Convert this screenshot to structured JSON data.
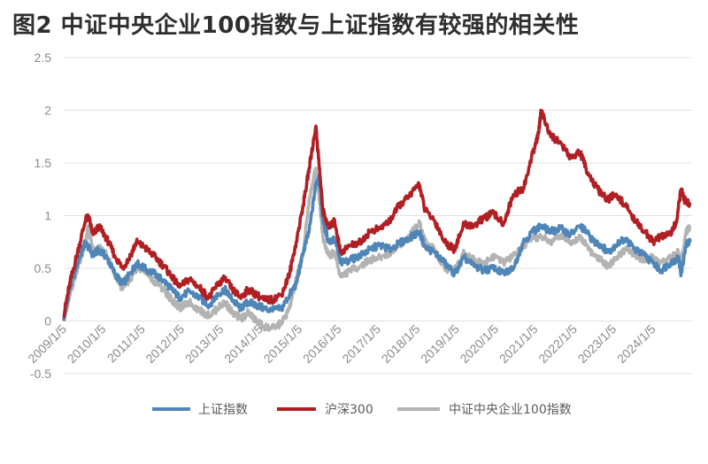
{
  "title": "图2  中证中央企业100指数与上证指数有较强的相关性",
  "colors": {
    "sse": "#4f86b7",
    "csi300": "#b01f24",
    "cse100": "#b3b3b3",
    "grid": "#e1e1e1",
    "axis_text": "#8a8a8a"
  },
  "chart_data": {
    "type": "line",
    "title": "图2  中证中央企业100指数与上证指数有较强的相关性",
    "xlabel": "",
    "ylabel": "",
    "ylim": [
      -0.5,
      2.5
    ],
    "yticks": [
      -0.5,
      0,
      0.5,
      1,
      1.5,
      2,
      2.5
    ],
    "ytick_labels": [
      "-0.5",
      "0",
      "0.5",
      "1",
      "1.5",
      "2",
      "2.5"
    ],
    "xlim": [
      2009.0,
      2025.0
    ],
    "xticks": [
      2009.0,
      2010.0,
      2011.0,
      2012.0,
      2013.0,
      2014.0,
      2015.0,
      2016.0,
      2017.0,
      2018.0,
      2019.0,
      2020.0,
      2021.0,
      2022.0,
      2023.0,
      2024.0
    ],
    "xtick_labels": [
      "2009/1/5",
      "2010/1/5",
      "2011/1/5",
      "2012/1/5",
      "2013/1/5",
      "2014/1/5",
      "2015/1/5",
      "2016/1/5",
      "2017/1/5",
      "2018/1/5",
      "2019/1/5",
      "2020/1/5",
      "2021/1/5",
      "2022/1/5",
      "2023/1/5",
      "2024/1/5"
    ],
    "grid": "horizontal",
    "legend": "bottom",
    "series": [
      {
        "name": "上证指数",
        "x": [
          2009.0,
          2009.15,
          2009.35,
          2009.55,
          2009.75,
          2009.9,
          2010.1,
          2010.3,
          2010.5,
          2010.7,
          2010.85,
          2011.05,
          2011.3,
          2011.55,
          2011.75,
          2011.95,
          2012.2,
          2012.45,
          2012.7,
          2012.92,
          2013.1,
          2013.3,
          2013.5,
          2013.7,
          2013.9,
          2014.1,
          2014.3,
          2014.55,
          2014.75,
          2014.92,
          2015.1,
          2015.25,
          2015.42,
          2015.5,
          2015.6,
          2015.75,
          2015.9,
          2016.05,
          2016.3,
          2016.55,
          2016.8,
          2017.05,
          2017.3,
          2017.55,
          2017.8,
          2018.05,
          2018.2,
          2018.45,
          2018.7,
          2018.95,
          2019.2,
          2019.45,
          2019.7,
          2019.95,
          2020.2,
          2020.45,
          2020.7,
          2020.95,
          2021.15,
          2021.4,
          2021.65,
          2021.9,
          2022.15,
          2022.3,
          2022.5,
          2022.7,
          2022.85,
          2023.05,
          2023.3,
          2023.55,
          2023.8,
          2024.0,
          2024.2,
          2024.45,
          2024.65,
          2024.72,
          2024.85,
          2024.95
        ],
        "y": [
          0.0,
          0.3,
          0.55,
          0.75,
          0.62,
          0.68,
          0.6,
          0.45,
          0.35,
          0.45,
          0.55,
          0.5,
          0.45,
          0.38,
          0.3,
          0.22,
          0.28,
          0.22,
          0.15,
          0.25,
          0.3,
          0.2,
          0.12,
          0.18,
          0.15,
          0.12,
          0.1,
          0.12,
          0.25,
          0.35,
          0.65,
          0.85,
          1.3,
          1.38,
          0.95,
          0.75,
          0.78,
          0.55,
          0.58,
          0.62,
          0.68,
          0.72,
          0.68,
          0.74,
          0.78,
          0.85,
          0.7,
          0.65,
          0.55,
          0.45,
          0.6,
          0.52,
          0.48,
          0.5,
          0.45,
          0.5,
          0.75,
          0.85,
          0.9,
          0.85,
          0.88,
          0.82,
          0.9,
          0.85,
          0.75,
          0.72,
          0.65,
          0.72,
          0.78,
          0.68,
          0.62,
          0.55,
          0.48,
          0.55,
          0.6,
          0.45,
          0.72,
          0.75
        ]
      },
      {
        "name": "沪深300",
        "x": [
          2009.0,
          2009.15,
          2009.35,
          2009.55,
          2009.62,
          2009.75,
          2009.9,
          2010.1,
          2010.3,
          2010.5,
          2010.7,
          2010.85,
          2011.05,
          2011.3,
          2011.55,
          2011.75,
          2011.95,
          2012.2,
          2012.45,
          2012.7,
          2012.92,
          2013.1,
          2013.3,
          2013.5,
          2013.7,
          2013.9,
          2014.1,
          2014.3,
          2014.55,
          2014.75,
          2014.92,
          2015.1,
          2015.25,
          2015.42,
          2015.5,
          2015.6,
          2015.75,
          2015.9,
          2016.05,
          2016.3,
          2016.55,
          2016.8,
          2017.05,
          2017.3,
          2017.55,
          2017.8,
          2018.05,
          2018.2,
          2018.45,
          2018.7,
          2018.95,
          2019.2,
          2019.45,
          2019.7,
          2019.95,
          2020.2,
          2020.45,
          2020.7,
          2020.95,
          2021.1,
          2021.15,
          2021.4,
          2021.65,
          2021.9,
          2022.15,
          2022.3,
          2022.5,
          2022.7,
          2022.85,
          2023.05,
          2023.3,
          2023.55,
          2023.8,
          2024.0,
          2024.2,
          2024.45,
          2024.6,
          2024.72,
          2024.8,
          2024.95
        ],
        "y": [
          0.05,
          0.35,
          0.65,
          0.95,
          1.0,
          0.82,
          0.9,
          0.78,
          0.62,
          0.5,
          0.62,
          0.75,
          0.7,
          0.62,
          0.52,
          0.42,
          0.32,
          0.4,
          0.32,
          0.22,
          0.35,
          0.4,
          0.3,
          0.22,
          0.3,
          0.25,
          0.2,
          0.2,
          0.25,
          0.45,
          0.75,
          1.1,
          1.45,
          1.85,
          1.5,
          1.05,
          0.88,
          0.95,
          0.65,
          0.72,
          0.75,
          0.85,
          0.88,
          0.95,
          1.1,
          1.18,
          1.3,
          1.05,
          0.95,
          0.75,
          0.68,
          0.92,
          0.9,
          0.98,
          1.02,
          0.92,
          1.2,
          1.25,
          1.6,
          1.8,
          2.0,
          1.75,
          1.7,
          1.55,
          1.6,
          1.45,
          1.3,
          1.2,
          1.15,
          1.2,
          1.1,
          0.95,
          0.85,
          0.75,
          0.8,
          0.82,
          0.95,
          1.25,
          1.15,
          1.1
        ]
      },
      {
        "name": "中证中央企业100指数",
        "x": [
          2009.0,
          2009.15,
          2009.35,
          2009.55,
          2009.62,
          2009.75,
          2009.9,
          2010.1,
          2010.3,
          2010.5,
          2010.7,
          2010.85,
          2011.05,
          2011.3,
          2011.55,
          2011.75,
          2011.95,
          2012.2,
          2012.45,
          2012.7,
          2012.92,
          2013.1,
          2013.3,
          2013.5,
          2013.7,
          2013.9,
          2014.1,
          2014.3,
          2014.55,
          2014.75,
          2014.92,
          2015.1,
          2015.25,
          2015.42,
          2015.5,
          2015.6,
          2015.75,
          2015.9,
          2016.05,
          2016.3,
          2016.55,
          2016.8,
          2017.05,
          2017.3,
          2017.55,
          2017.8,
          2018.05,
          2018.2,
          2018.45,
          2018.7,
          2018.95,
          2019.2,
          2019.45,
          2019.7,
          2019.95,
          2020.2,
          2020.45,
          2020.7,
          2020.95,
          2021.15,
          2021.4,
          2021.65,
          2021.9,
          2022.15,
          2022.3,
          2022.5,
          2022.7,
          2022.85,
          2023.05,
          2023.3,
          2023.55,
          2023.8,
          2024.0,
          2024.2,
          2024.45,
          2024.65,
          2024.72,
          2024.85,
          2024.95
        ],
        "y": [
          0.0,
          0.25,
          0.5,
          0.72,
          0.9,
          0.65,
          0.7,
          0.62,
          0.45,
          0.3,
          0.38,
          0.5,
          0.48,
          0.38,
          0.3,
          0.2,
          0.12,
          0.18,
          0.1,
          0.05,
          0.12,
          0.18,
          0.08,
          0.02,
          0.08,
          0.0,
          -0.05,
          -0.07,
          -0.02,
          0.12,
          0.4,
          0.65,
          1.15,
          1.45,
          1.2,
          0.8,
          0.62,
          0.65,
          0.42,
          0.48,
          0.52,
          0.58,
          0.6,
          0.65,
          0.72,
          0.8,
          0.95,
          0.75,
          0.68,
          0.5,
          0.48,
          0.65,
          0.58,
          0.55,
          0.62,
          0.55,
          0.62,
          0.7,
          0.78,
          0.8,
          0.75,
          0.82,
          0.75,
          0.8,
          0.72,
          0.62,
          0.58,
          0.52,
          0.6,
          0.68,
          0.62,
          0.58,
          0.6,
          0.55,
          0.6,
          0.65,
          0.55,
          0.85,
          0.88
        ]
      }
    ]
  }
}
